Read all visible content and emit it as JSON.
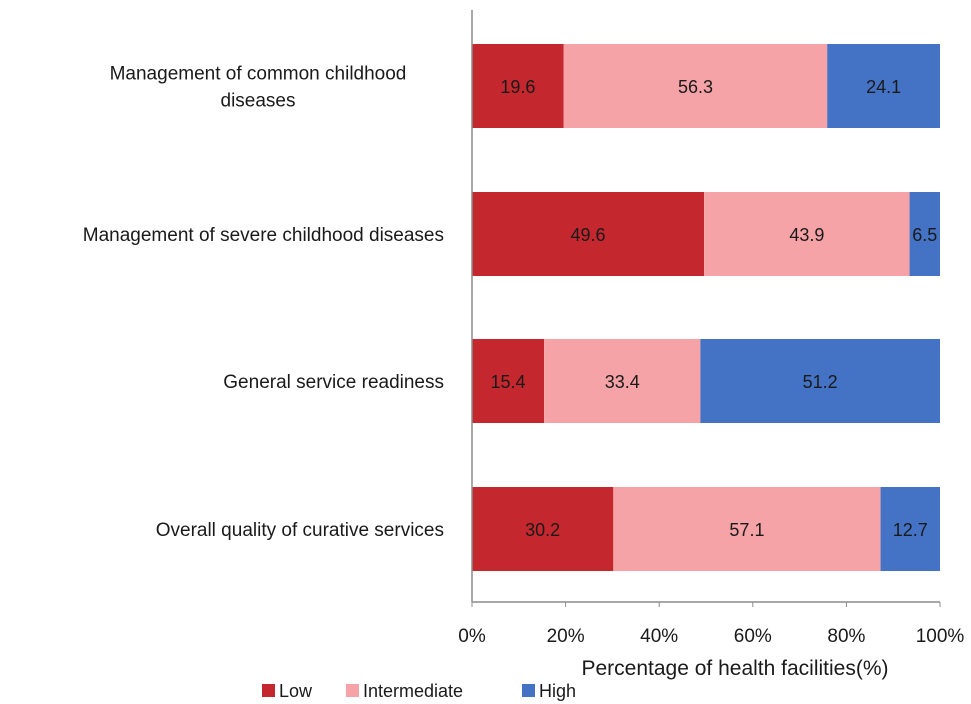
{
  "chart_data": {
    "type": "bar",
    "orientation": "horizontal",
    "stacked": true,
    "title": "",
    "xlabel": "Percentage of health facilities(%)",
    "ylabel": "",
    "xlim": [
      0,
      100
    ],
    "x_ticks": [
      "0%",
      "20%",
      "40%",
      "60%",
      "80%",
      "100%"
    ],
    "categories": [
      [
        "Management of common childhood",
        "diseases"
      ],
      [
        "Management of severe childhood diseases"
      ],
      [
        "General service readiness"
      ],
      [
        "Overall quality of curative services"
      ]
    ],
    "series": [
      {
        "name": "Low",
        "color": "#c4272d",
        "values": [
          19.6,
          49.6,
          15.4,
          30.2
        ]
      },
      {
        "name": "Intermediate",
        "color": "#f5a3a6",
        "values": [
          56.3,
          43.9,
          33.4,
          57.1
        ]
      },
      {
        "name": "High",
        "color": "#4472c4",
        "values": [
          24.1,
          6.5,
          51.2,
          12.7
        ]
      }
    ],
    "data_labels": [
      [
        "19.6",
        "56.3",
        "24.1"
      ],
      [
        "49.6",
        "43.9",
        "6.5"
      ],
      [
        "15.4",
        "33.4",
        "51.2"
      ],
      [
        "30.2",
        "57.1",
        "12.7"
      ]
    ],
    "grid": false,
    "legend_position": "bottom"
  }
}
